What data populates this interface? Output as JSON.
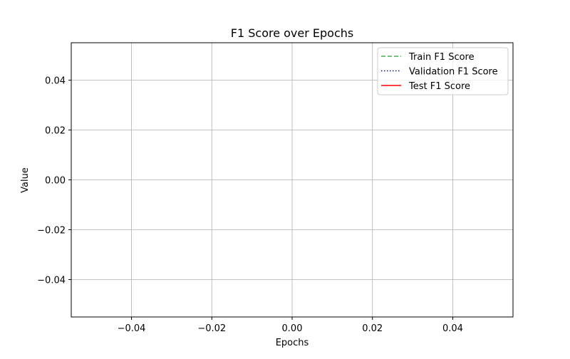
{
  "chart_data": {
    "type": "line",
    "title": "F1 Score over Epochs",
    "xlabel": "Epochs",
    "ylabel": "Value",
    "xlim": [
      -0.055,
      0.055
    ],
    "ylim": [
      -0.055,
      0.055
    ],
    "x_ticks": [
      -0.04,
      -0.02,
      0.0,
      0.02,
      0.04
    ],
    "x_tick_labels": [
      "−0.04",
      "−0.02",
      "0.00",
      "0.02",
      "0.04"
    ],
    "y_ticks": [
      -0.04,
      -0.02,
      0.0,
      0.02,
      0.04
    ],
    "y_tick_labels": [
      "−0.04",
      "−0.02",
      "0.00",
      "0.02",
      "0.04"
    ],
    "grid": true,
    "legend_position": "upper right",
    "series": [
      {
        "name": "Train F1 Score",
        "x": [],
        "y": [],
        "color": "#4caf50",
        "line_style": "dashed"
      },
      {
        "name": "Validation F1 Score",
        "x": [],
        "y": [],
        "color": "#0000cc",
        "line_style": "dotted"
      },
      {
        "name": "Test F1 Score",
        "x": [],
        "y": [],
        "color": "#ff0000",
        "line_style": "solid"
      }
    ]
  }
}
